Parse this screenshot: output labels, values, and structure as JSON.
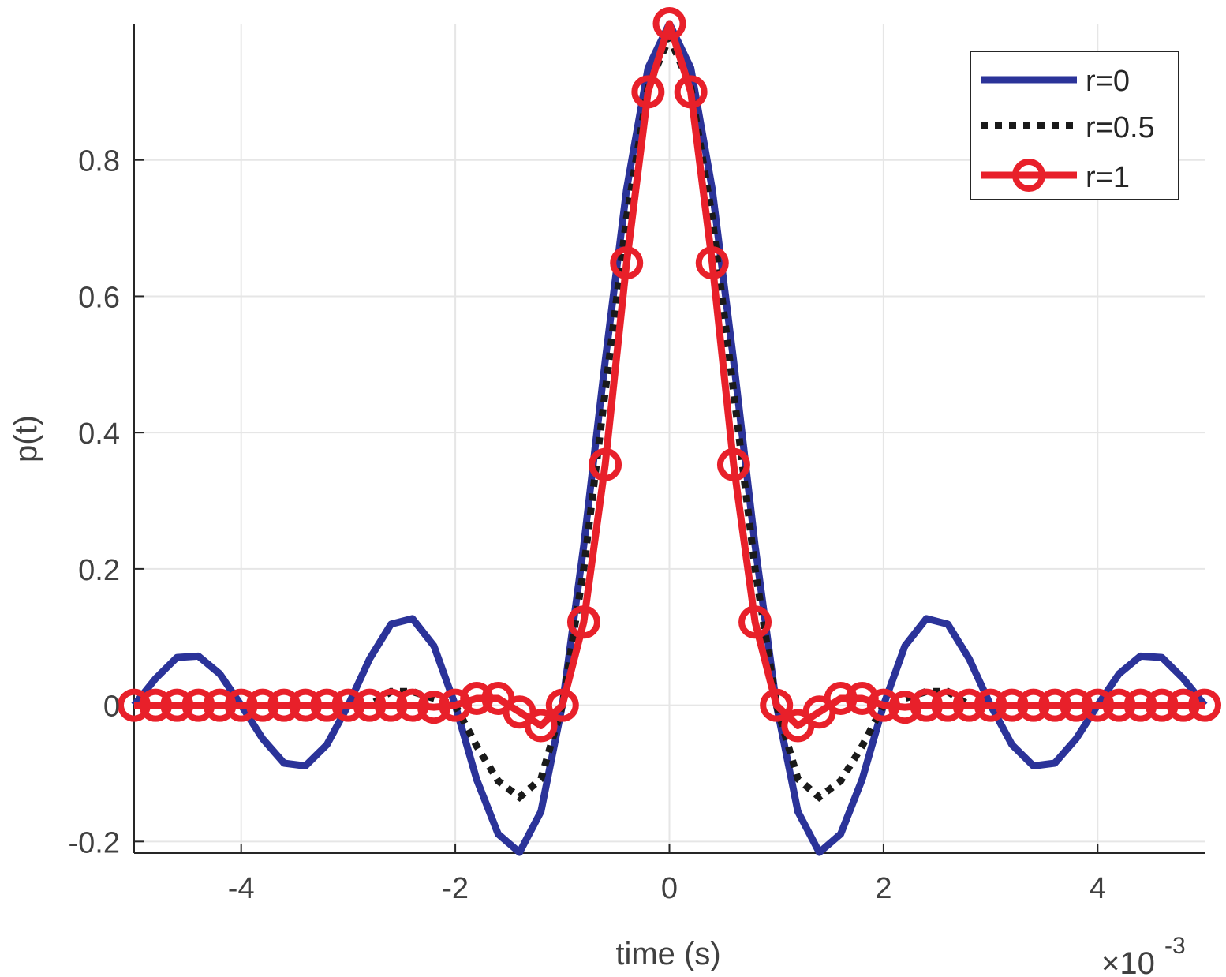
{
  "chart_data": {
    "type": "line",
    "xlabel": "time (s)",
    "ylabel": "p(t)",
    "x_exponent_base": "×10",
    "x_exponent_power": "-3",
    "xlim": [
      -5,
      5
    ],
    "ylim": [
      -0.217,
      1.0
    ],
    "grid": true,
    "legend_position": "top-right",
    "x_ticks": [
      -4,
      -2,
      0,
      2,
      4
    ],
    "x_tick_labels": [
      "-4",
      "-2",
      "0",
      "2",
      "4"
    ],
    "y_ticks": [
      -0.2,
      0,
      0.2,
      0.4,
      0.6,
      0.8
    ],
    "y_tick_labels": [
      "-0.2",
      "0",
      "0.2",
      "0.4",
      "0.6",
      "0.8"
    ],
    "x": [
      -5.0,
      -4.8,
      -4.6,
      -4.4,
      -4.2,
      -4.0,
      -3.8,
      -3.6,
      -3.4,
      -3.2,
      -3.0,
      -2.8,
      -2.6,
      -2.4,
      -2.2,
      -2.0,
      -1.8,
      -1.6,
      -1.4,
      -1.2,
      -1.0,
      -0.8,
      -0.6,
      -0.4,
      -0.2,
      0.0,
      0.2,
      0.4,
      0.6,
      0.8,
      1.0,
      1.2,
      1.4,
      1.6,
      1.8,
      2.0,
      2.2,
      2.4,
      2.6,
      2.8,
      3.0,
      3.2,
      3.4,
      3.6,
      3.8,
      4.0,
      4.2,
      4.4,
      4.6,
      4.8,
      5.0
    ],
    "series": [
      {
        "name": "r=0",
        "color": "#2b3399",
        "style": "solid",
        "values": [
          0.0,
          0.039,
          0.07,
          0.072,
          0.046,
          0.0,
          -0.049,
          -0.085,
          -0.089,
          -0.058,
          0.0,
          0.068,
          0.119,
          0.127,
          0.087,
          0.0,
          -0.109,
          -0.189,
          -0.216,
          -0.156,
          0.0,
          0.234,
          0.505,
          0.757,
          0.935,
          1.0,
          0.935,
          0.757,
          0.505,
          0.234,
          0.0,
          -0.156,
          -0.216,
          -0.189,
          -0.109,
          0.0,
          0.087,
          0.127,
          0.119,
          0.068,
          0.0,
          -0.058,
          -0.089,
          -0.085,
          -0.049,
          0.0,
          0.046,
          0.072,
          0.07,
          0.039,
          0.0
        ]
      },
      {
        "name": "r=0.5",
        "color": "#1a1a1a",
        "style": "dotted",
        "values": [
          0.0,
          0.0,
          0.0,
          0.0,
          0.0,
          0.0,
          0.0,
          0.0,
          0.0,
          0.0,
          0.0,
          0.0,
          0.02,
          0.02,
          0.01,
          0.0,
          -0.06,
          -0.111,
          -0.135,
          -0.108,
          0.0,
          0.2,
          0.46,
          0.715,
          0.907,
          0.98,
          0.907,
          0.715,
          0.46,
          0.2,
          0.0,
          -0.108,
          -0.135,
          -0.111,
          -0.06,
          0.0,
          0.01,
          0.02,
          0.02,
          0.0,
          0.0,
          0.0,
          0.0,
          0.0,
          0.0,
          0.0,
          0.0,
          0.0,
          0.0,
          0.0,
          0.0
        ]
      },
      {
        "name": "r=1",
        "color": "#e8202a",
        "style": "solid-marker",
        "values": [
          0.0,
          0.0,
          0.0,
          0.0,
          0.0,
          0.0,
          0.0,
          0.0,
          0.0,
          0.0,
          0.0,
          0.0,
          0.0,
          0.0,
          -0.003,
          0.0,
          0.01,
          0.01,
          -0.01,
          -0.03,
          0.0,
          0.122,
          0.353,
          0.649,
          0.9,
          1.0,
          0.9,
          0.649,
          0.353,
          0.122,
          0.0,
          -0.03,
          -0.01,
          0.01,
          0.01,
          0.0,
          -0.003,
          0.0,
          0.0,
          0.0,
          0.0,
          0.0,
          0.0,
          0.0,
          0.0,
          0.0,
          0.0,
          0.0,
          0.0,
          0.0,
          0.0
        ]
      }
    ]
  }
}
